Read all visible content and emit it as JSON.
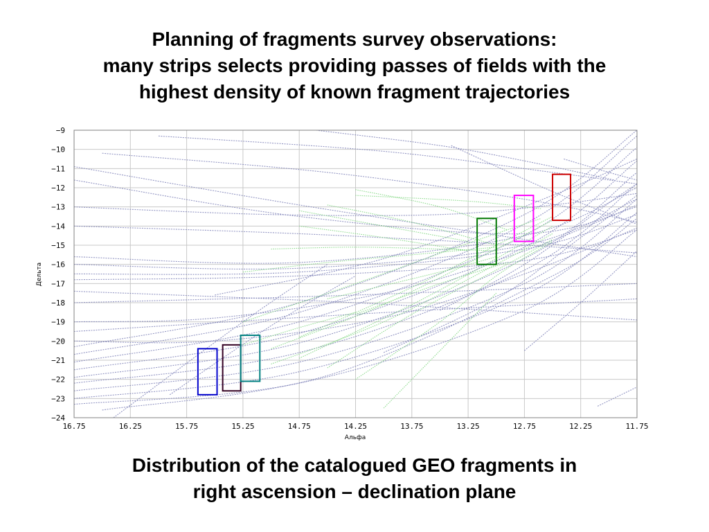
{
  "slide": {
    "title_lines": [
      "Planning of fragments survey observations:",
      "many strips selects providing passes of fields with the",
      "highest density of known fragment  trajectories"
    ],
    "caption_lines": [
      "Distribution of the catalogued GEO fragments in",
      "right ascension – declination plane"
    ]
  },
  "chart_data": {
    "type": "line",
    "xlabel": "Альфа",
    "ylabel": "Дельта",
    "x_reversed": true,
    "xlim": [
      16.75,
      11.75
    ],
    "ylim": [
      -24,
      -9
    ],
    "grid": true,
    "x_ticks": [
      "16.75",
      "16.25",
      "15.75",
      "15.25",
      "14.75",
      "14.25",
      "13.75",
      "13.25",
      "12.75",
      "12.25",
      "11.75"
    ],
    "x_tick_values": [
      16.75,
      16.25,
      15.75,
      15.25,
      14.75,
      14.25,
      13.75,
      13.25,
      12.75,
      12.25,
      11.75
    ],
    "y_ticks": [
      "−9",
      "−10",
      "−11",
      "−12",
      "−13",
      "−14",
      "−15",
      "−16",
      "−17",
      "−18",
      "−19",
      "−20",
      "−21",
      "−22",
      "−23",
      "−24"
    ],
    "y_tick_values": [
      -9,
      -10,
      -11,
      -12,
      -13,
      -14,
      -15,
      -16,
      -17,
      -18,
      -19,
      -20,
      -21,
      -22,
      -23,
      -24
    ],
    "colors": {
      "blue_trajectories": "#7f82b8",
      "green_trajectories": "#7fd67f",
      "grid": "#c8c8c8"
    },
    "series": [
      {
        "group": "blue",
        "x": [
          16.75,
          14.75,
          12.75,
          11.75
        ],
        "y": [
          -22.2,
          -20.6,
          -16.3,
          -11.8
        ]
      },
      {
        "group": "blue",
        "x": [
          16.75,
          14.75,
          12.75,
          11.75
        ],
        "y": [
          -21.9,
          -20.1,
          -15.7,
          -11.2
        ]
      },
      {
        "group": "blue",
        "x": [
          16.75,
          14.75,
          12.75,
          11.75
        ],
        "y": [
          -21.5,
          -19.6,
          -15.1,
          -10.6
        ]
      },
      {
        "group": "blue",
        "x": [
          16.75,
          14.75,
          12.75,
          11.75
        ],
        "y": [
          -22.6,
          -21.1,
          -17.0,
          -12.6
        ]
      },
      {
        "group": "blue",
        "x": [
          16.75,
          14.75,
          12.75,
          11.75
        ],
        "y": [
          -23.0,
          -21.6,
          -17.6,
          -13.3
        ]
      },
      {
        "group": "blue",
        "x": [
          16.75,
          14.75,
          12.75,
          11.75
        ],
        "y": [
          -21.1,
          -19.0,
          -14.5,
          -9.9
        ]
      },
      {
        "group": "blue",
        "x": [
          16.75,
          14.75,
          12.75,
          11.75
        ],
        "y": [
          -20.7,
          -18.5,
          -13.9,
          -9.3
        ]
      },
      {
        "group": "blue",
        "x": [
          16.75,
          14.75,
          12.75,
          11.75
        ],
        "y": [
          -23.3,
          -22.2,
          -18.4,
          -14.2
        ]
      },
      {
        "group": "blue",
        "x": [
          16.75,
          14.75,
          12.75,
          11.75
        ],
        "y": [
          -20.3,
          -18.0,
          -13.4,
          -9.0
        ]
      },
      {
        "group": "blue",
        "x": [
          16.5,
          14.5,
          12.5,
          11.75
        ],
        "y": [
          -23.6,
          -21.8,
          -16.6,
          -13.6
        ]
      },
      {
        "group": "blue",
        "x": [
          16.75,
          14.75,
          12.75,
          11.75
        ],
        "y": [
          -16.0,
          -16.2,
          -15.0,
          -12.6
        ]
      },
      {
        "group": "blue",
        "x": [
          16.75,
          14.75,
          12.75,
          11.75
        ],
        "y": [
          -15.6,
          -15.9,
          -14.5,
          -12.0
        ]
      },
      {
        "group": "blue",
        "x": [
          16.75,
          14.75,
          12.75,
          11.75
        ],
        "y": [
          -16.5,
          -16.4,
          -15.2,
          -13.4
        ]
      },
      {
        "group": "blue",
        "x": [
          16.75,
          14.75,
          12.75,
          11.75
        ],
        "y": [
          -16.8,
          -16.6,
          -15.8,
          -14.2
        ]
      },
      {
        "group": "blue",
        "x": [
          16.75,
          14.75,
          12.75,
          11.75
        ],
        "y": [
          -11.6,
          -13.5,
          -14.4,
          -13.0
        ]
      },
      {
        "group": "blue",
        "x": [
          16.75,
          14.75,
          12.75,
          11.75
        ],
        "y": [
          -10.9,
          -12.9,
          -14.7,
          -15.6
        ]
      },
      {
        "group": "blue",
        "x": [
          16.75,
          14.75,
          12.75,
          11.75
        ],
        "y": [
          -14.0,
          -14.4,
          -15.0,
          -15.4
        ]
      },
      {
        "group": "blue",
        "x": [
          16.75,
          14.25,
          11.75
        ],
        "y": [
          -18.0,
          -17.6,
          -17.0
        ]
      },
      {
        "group": "blue",
        "x": [
          16.75,
          14.25,
          11.75
        ],
        "y": [
          -19.5,
          -18.6,
          -17.8
        ]
      },
      {
        "group": "blue",
        "x": [
          16.75,
          14.25,
          11.75
        ],
        "y": [
          -17.4,
          -18.0,
          -18.9
        ]
      },
      {
        "group": "blue",
        "x": [
          16.5,
          14.5,
          12.75,
          11.75
        ],
        "y": [
          -10.2,
          -11.2,
          -12.6,
          -13.8
        ]
      },
      {
        "group": "blue",
        "x": [
          16.0,
          14.0,
          12.5,
          11.75
        ],
        "y": [
          -9.3,
          -10.1,
          -11.2,
          -11.8
        ]
      },
      {
        "group": "blue",
        "x": [
          16.75,
          15.0,
          13.5,
          12.5,
          11.75
        ],
        "y": [
          -13.0,
          -13.4,
          -13.4,
          -12.9,
          -12.3
        ]
      },
      {
        "group": "blue",
        "x": [
          15.5,
          14.0,
          12.5,
          11.75
        ],
        "y": [
          -17.6,
          -15.7,
          -12.4,
          -10.5
        ]
      },
      {
        "group": "blue",
        "x": [
          14.0,
          13.0,
          12.25,
          11.75
        ],
        "y": [
          -20.6,
          -17.8,
          -14.6,
          -12.4
        ]
      },
      {
        "group": "blue",
        "x": [
          13.5,
          12.75,
          12.0,
          11.75
        ],
        "y": [
          -18.4,
          -16.0,
          -12.8,
          -11.8
        ]
      },
      {
        "group": "blue",
        "x": [
          12.75,
          12.25,
          11.75
        ],
        "y": [
          -20.5,
          -18.0,
          -15.3
        ]
      },
      {
        "group": "blue",
        "x": [
          16.4,
          15.25,
          14.5
        ],
        "y": [
          -24.0,
          -19.0,
          -16.0
        ]
      },
      {
        "group": "blue",
        "x": [
          15.9,
          15.0,
          14.25
        ],
        "y": [
          -22.8,
          -19.2,
          -16.6
        ]
      },
      {
        "group": "blue",
        "x": [
          14.6,
          13.5,
          12.75,
          11.95
        ],
        "y": [
          -9.0,
          -9.8,
          -10.6,
          -11.6
        ]
      },
      {
        "group": "blue",
        "x": [
          13.4,
          12.5,
          11.75
        ],
        "y": [
          -9.8,
          -12.2,
          -13.9
        ]
      },
      {
        "group": "blue",
        "x": [
          12.4,
          12.0,
          11.75
        ],
        "y": [
          -10.5,
          -11.2,
          -11.6
        ]
      },
      {
        "group": "blue",
        "x": [
          16.75,
          15.5,
          14.0,
          12.75,
          11.75
        ],
        "y": [
          -20.0,
          -20.0,
          -18.8,
          -16.5,
          -14.1
        ]
      },
      {
        "group": "blue",
        "x": [
          16.75,
          15.5,
          14.0,
          12.75,
          11.75
        ],
        "y": [
          -19.0,
          -18.8,
          -17.5,
          -15.3,
          -12.9
        ]
      },
      {
        "group": "blue",
        "x": [
          12.1,
          11.75
        ],
        "y": [
          -23.4,
          -22.4
        ]
      },
      {
        "group": "green",
        "x": [
          15.0,
          14.0,
          13.0,
          12.5
        ],
        "y": [
          -21.2,
          -19.0,
          -16.0,
          -14.4
        ]
      },
      {
        "group": "green",
        "x": [
          15.0,
          14.0,
          13.0,
          12.5
        ],
        "y": [
          -20.4,
          -18.1,
          -15.2,
          -13.7
        ]
      },
      {
        "group": "green",
        "x": [
          14.75,
          13.75,
          13.0,
          12.5
        ],
        "y": [
          -20.9,
          -18.1,
          -15.7,
          -14.0
        ]
      },
      {
        "group": "green",
        "x": [
          14.75,
          13.75,
          13.0,
          12.5
        ],
        "y": [
          -19.8,
          -17.2,
          -15.0,
          -13.5
        ]
      },
      {
        "group": "green",
        "x": [
          14.5,
          13.75,
          13.0,
          12.5
        ],
        "y": [
          -21.4,
          -18.6,
          -16.3,
          -14.7
        ]
      },
      {
        "group": "green",
        "x": [
          14.25,
          13.5,
          13.0,
          12.5
        ],
        "y": [
          -22.0,
          -19.0,
          -16.6,
          -14.8
        ]
      },
      {
        "group": "green",
        "x": [
          15.25,
          14.25,
          13.25,
          12.6
        ],
        "y": [
          -19.0,
          -17.0,
          -14.9,
          -13.6
        ]
      },
      {
        "group": "green",
        "x": [
          14.0,
          13.5,
          13.0
        ],
        "y": [
          -23.5,
          -20.5,
          -17.5
        ]
      },
      {
        "group": "green",
        "x": [
          15.25,
          14.5,
          13.75,
          13.0
        ],
        "y": [
          -16.4,
          -15.9,
          -15.5,
          -15.1
        ]
      },
      {
        "group": "green",
        "x": [
          15.0,
          14.25,
          13.5,
          13.0
        ],
        "y": [
          -15.2,
          -15.1,
          -15.2,
          -15.3
        ]
      },
      {
        "group": "green",
        "x": [
          14.75,
          14.0,
          13.25
        ],
        "y": [
          -14.0,
          -14.6,
          -15.3
        ]
      },
      {
        "group": "green",
        "x": [
          14.5,
          13.75,
          13.0
        ],
        "y": [
          -12.9,
          -13.8,
          -15.0
        ]
      },
      {
        "group": "green",
        "x": [
          14.25,
          13.5,
          12.9
        ],
        "y": [
          -12.1,
          -13.0,
          -14.2
        ]
      },
      {
        "group": "green",
        "x": [
          14.75,
          14.0,
          13.25
        ],
        "y": [
          -13.2,
          -14.0,
          -14.8
        ]
      },
      {
        "group": "green",
        "x": [
          14.5,
          13.5,
          13.0
        ],
        "y": [
          -17.8,
          -16.4,
          -15.6
        ]
      },
      {
        "group": "green",
        "x": [
          14.25,
          13.5,
          12.9
        ],
        "y": [
          -18.6,
          -17.0,
          -15.9
        ]
      },
      {
        "group": "green",
        "x": [
          15.25,
          14.75,
          14.25
        ],
        "y": [
          -20.2,
          -19.3,
          -18.5
        ]
      },
      {
        "group": "green",
        "x": [
          14.25,
          13.25,
          12.6
        ],
        "y": [
          -12.4,
          -12.7,
          -13.1
        ]
      }
    ],
    "highlight_rectangles": [
      {
        "color": "#0000cc",
        "x_range": [
          15.65,
          15.48
        ],
        "y_range": [
          -20.4,
          -22.8
        ]
      },
      {
        "color": "#330022",
        "x_range": [
          15.43,
          15.27
        ],
        "y_range": [
          -20.2,
          -22.6
        ]
      },
      {
        "color": "#008080",
        "x_range": [
          15.27,
          15.1
        ],
        "y_range": [
          -19.7,
          -22.1
        ]
      },
      {
        "color": "#007700",
        "x_range": [
          13.17,
          13.0
        ],
        "y_range": [
          -13.6,
          -16.0
        ]
      },
      {
        "color": "#ff00ff",
        "x_range": [
          12.84,
          12.67
        ],
        "y_range": [
          -12.4,
          -14.8
        ]
      },
      {
        "color": "#cc0000",
        "x_range": [
          12.5,
          12.34
        ],
        "y_range": [
          -11.3,
          -13.7
        ]
      }
    ]
  }
}
